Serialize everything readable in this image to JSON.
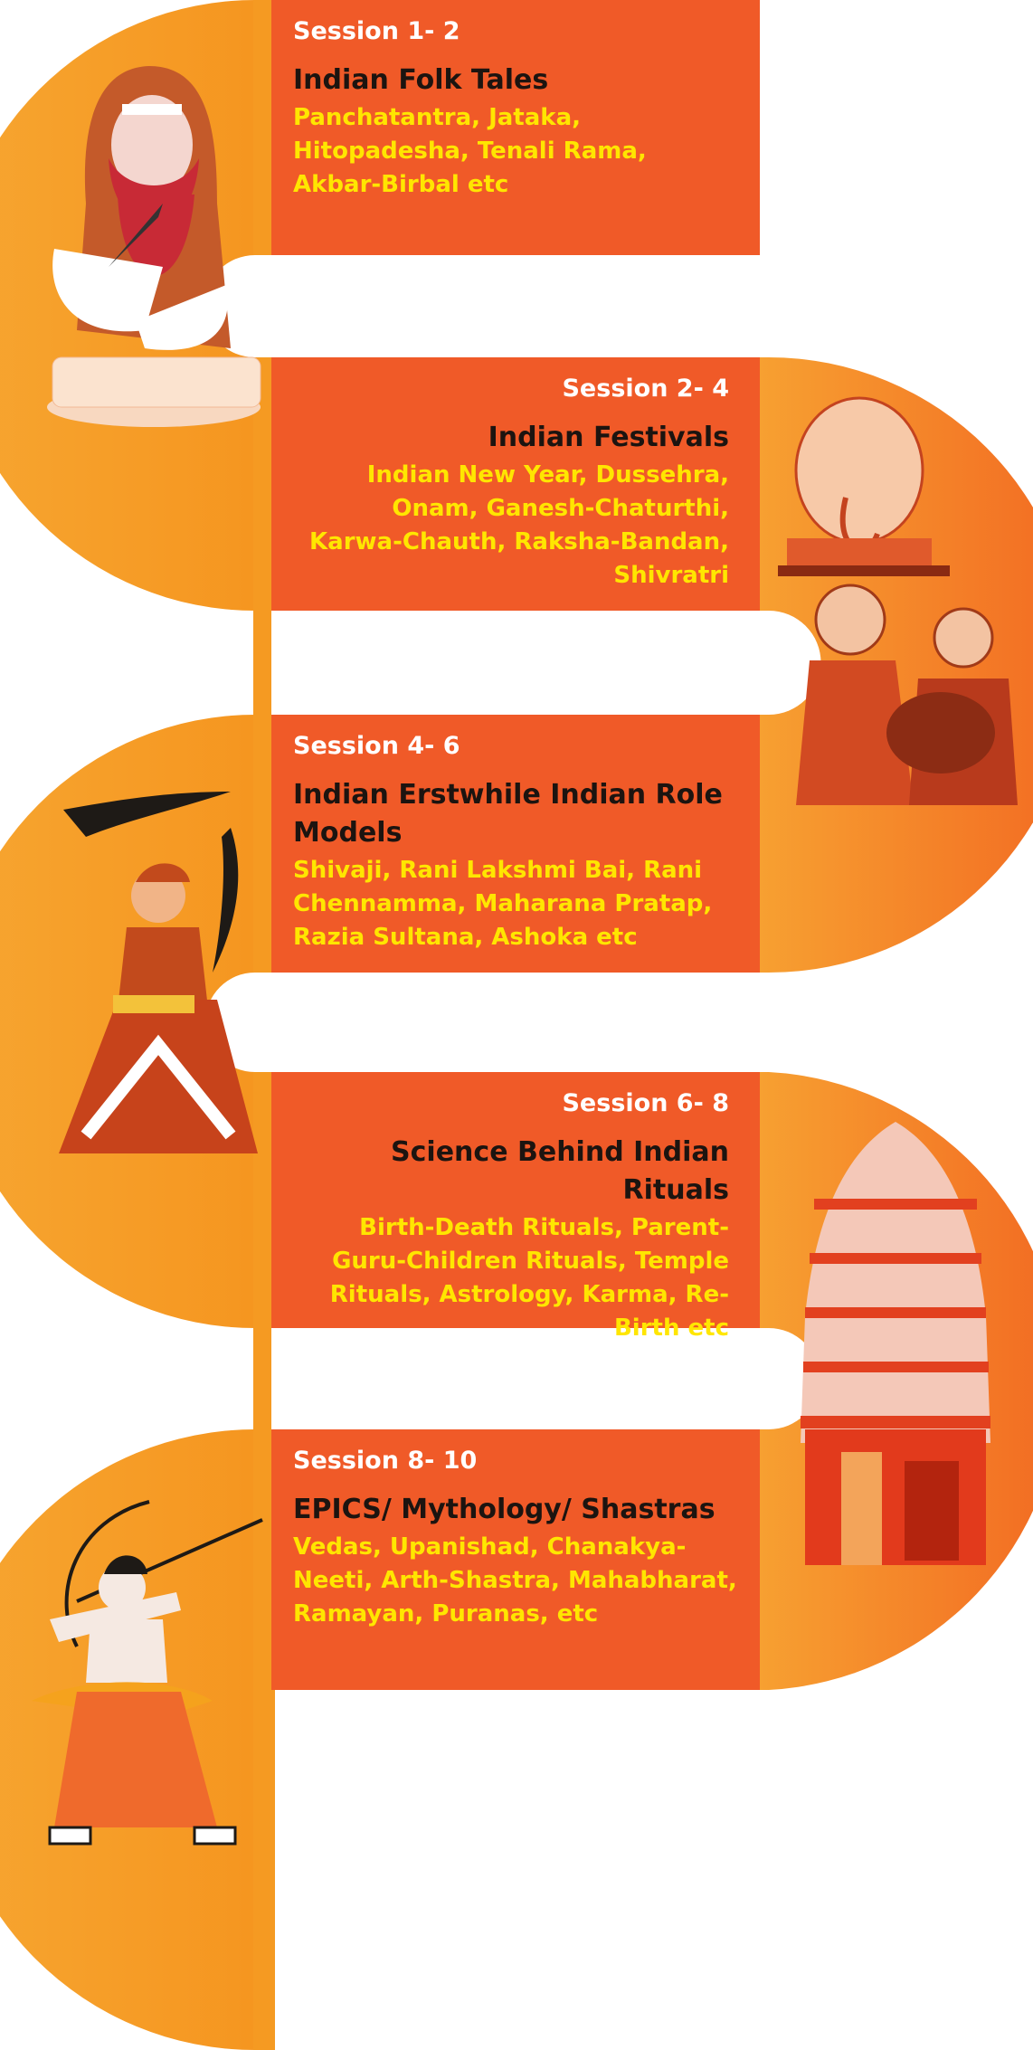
{
  "colors": {
    "band_light": "#f7a631",
    "band_dark": "#f26a22",
    "card": "#f05a28",
    "title_text": "#1c1410",
    "topic_text": "#ffe600",
    "session_text": "#ffffff"
  },
  "sessions": [
    {
      "label": "Session 1- 2",
      "title": "Indian Folk Tales",
      "topics": "Panchatantra, Jataka, Hitopadesha, Tenali Rama, Akbar-Birbal etc",
      "figure": "sage-writing-illustration"
    },
    {
      "label": "Session 2- 4",
      "title": "Indian Festivals",
      "topics": "Indian New Year, Dussehra, Onam, Ganesh-Chaturthi, Karwa-Chauth, Raksha-Bandan, Shivratri",
      "figure": "ganesh-procession-illustration"
    },
    {
      "label": "Session 4- 6",
      "title": "Indian Erstwhile Indian Role Models",
      "topics": "Shivaji, Rani Lakshmi Bai, Rani Chennamma, Maharana Pratap, Razia Sultana, Ashoka etc",
      "figure": "warrior-queen-illustration"
    },
    {
      "label": "Session 6- 8",
      "title": "Science Behind Indian Rituals",
      "topics": "Birth-Death Rituals, Parent-Guru-Children Rituals, Temple Rituals, Astrology, Karma, Re-Birth etc",
      "figure": "temple-gopuram-illustration"
    },
    {
      "label": "Session 8- 10",
      "title": "EPICS/ Mythology/ Shastras",
      "topics": "Vedas, Upanishad, Chanakya-Neeti, Arth-Shastra, Mahabharat, Ramayan, Puranas, etc",
      "figure": "archer-rama-illustration"
    }
  ]
}
